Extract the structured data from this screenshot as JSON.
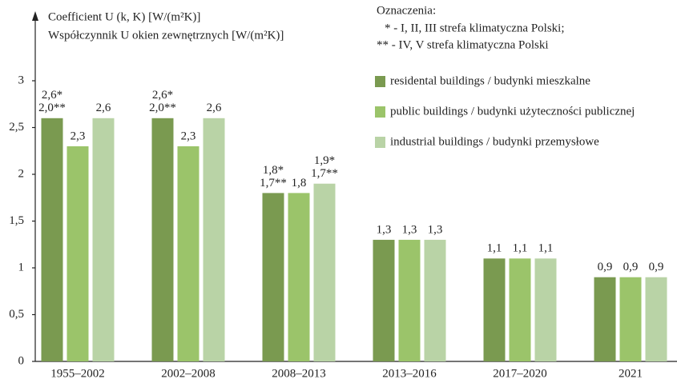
{
  "chart_data": {
    "type": "bar",
    "y_label": [
      "Coefficient U (k, K) [W/(m²K)]",
      "Współczynnik U okien zewnętrznych [W/(m²K)]"
    ],
    "notes": [
      "Oznaczenia:",
      "* - I, II, III strefa klimatyczna Polski;",
      "** - IV, V strefa klimatyczna Polski"
    ],
    "categories": [
      "1955–2002",
      "2002–2008",
      "2008–2013",
      "2013–2016",
      "2017–2020",
      "2021"
    ],
    "series": [
      {
        "name": "residental buildings / budynki mieszkalne",
        "color": "#7a9a50",
        "values": [
          2.6,
          2.6,
          1.8,
          1.3,
          1.1,
          0.9
        ],
        "value_labels": [
          [
            "2,6*",
            "2,0**"
          ],
          [
            "2,6*",
            "2,0**"
          ],
          [
            "1,8*",
            "1,7**"
          ],
          [
            "1,3"
          ],
          [
            "1,1"
          ],
          [
            "0,9"
          ]
        ]
      },
      {
        "name": "public buildings / budynki użyteczności publicznej",
        "color": "#9bc46a",
        "values": [
          2.3,
          2.3,
          1.8,
          1.3,
          1.1,
          0.9
        ],
        "value_labels": [
          [
            "2,3"
          ],
          [
            "2,3"
          ],
          [
            "1,8"
          ],
          [
            "1,3"
          ],
          [
            "1,1"
          ],
          [
            "0,9"
          ]
        ]
      },
      {
        "name": "industrial buildings / budynki przemysłowe",
        "color": "#b9d3a6",
        "values": [
          2.6,
          2.6,
          1.9,
          1.3,
          1.1,
          0.9
        ],
        "value_labels": [
          [
            "2,6"
          ],
          [
            "2,6"
          ],
          [
            "1,9*",
            "1,7**"
          ],
          [
            "1,3"
          ],
          [
            "1,1"
          ],
          [
            "0,9"
          ]
        ]
      }
    ],
    "ylim": [
      0,
      3
    ],
    "yticks": [
      0,
      {
        "value": 0.5,
        "label": "0,5"
      },
      1,
      {
        "value": 1.5,
        "label": "1,5"
      },
      2,
      {
        "value": 2.5,
        "label": "2,5"
      },
      3
    ],
    "grid": false
  }
}
